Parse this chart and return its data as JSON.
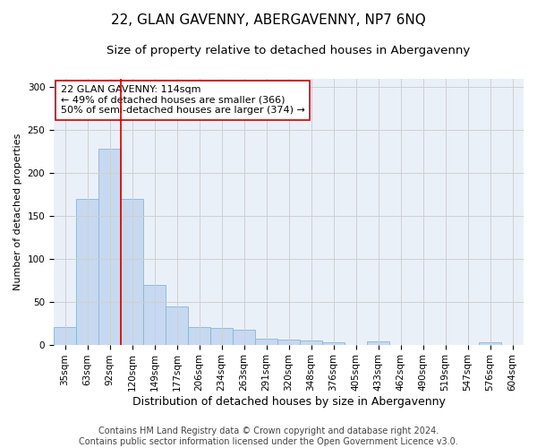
{
  "title": "22, GLAN GAVENNY, ABERGAVENNY, NP7 6NQ",
  "subtitle": "Size of property relative to detached houses in Abergavenny",
  "xlabel": "Distribution of detached houses by size in Abergavenny",
  "ylabel": "Number of detached properties",
  "footer_line1": "Contains HM Land Registry data © Crown copyright and database right 2024.",
  "footer_line2": "Contains public sector information licensed under the Open Government Licence v3.0.",
  "bar_labels": [
    "35sqm",
    "63sqm",
    "92sqm",
    "120sqm",
    "149sqm",
    "177sqm",
    "206sqm",
    "234sqm",
    "263sqm",
    "291sqm",
    "320sqm",
    "348sqm",
    "376sqm",
    "405sqm",
    "433sqm",
    "462sqm",
    "490sqm",
    "519sqm",
    "547sqm",
    "576sqm",
    "604sqm"
  ],
  "bar_values": [
    20,
    170,
    228,
    170,
    70,
    44,
    20,
    19,
    17,
    7,
    6,
    5,
    3,
    0,
    4,
    0,
    0,
    0,
    0,
    3,
    0
  ],
  "bar_color": "#c6d9f0",
  "bar_edge_color": "#8ab4d8",
  "grid_color": "#d0d0d0",
  "vline_x_index": 2,
  "vline_color": "#cc0000",
  "annotation_text": "22 GLAN GAVENNY: 114sqm\n← 49% of detached houses are smaller (366)\n50% of semi-detached houses are larger (374) →",
  "annotation_box_color": "white",
  "annotation_box_edgecolor": "#cc0000",
  "ylim": [
    0,
    310
  ],
  "yticks": [
    0,
    50,
    100,
    150,
    200,
    250,
    300
  ],
  "title_fontsize": 11,
  "subtitle_fontsize": 9.5,
  "ylabel_fontsize": 8,
  "xlabel_fontsize": 9,
  "tick_fontsize": 7.5,
  "annotation_fontsize": 8,
  "footer_fontsize": 7,
  "bg_color": "white",
  "axes_bg_color": "#eaf0f8"
}
